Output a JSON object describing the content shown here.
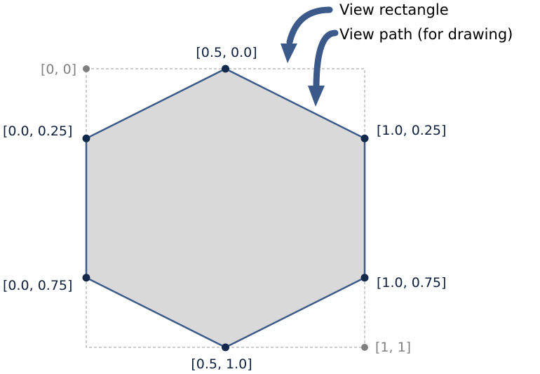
{
  "annotations": {
    "view_rectangle": "View rectangle",
    "view_path": "View path (for drawing)"
  },
  "corner_labels": {
    "top_left": "[0, 0]",
    "bottom_right": "[1, 1]"
  },
  "vertices": [
    {
      "label": "[0.5, 0.0]",
      "x": 0.5,
      "y": 0.0
    },
    {
      "label": "[1.0, 0.25]",
      "x": 1.0,
      "y": 0.25
    },
    {
      "label": "[1.0, 0.75]",
      "x": 1.0,
      "y": 0.75
    },
    {
      "label": "[0.5, 1.0]",
      "x": 0.5,
      "y": 1.0
    },
    {
      "label": "[0.0, 0.75]",
      "x": 0.0,
      "y": 0.75
    },
    {
      "label": "[0.0, 0.25]",
      "x": 0.0,
      "y": 0.25
    }
  ],
  "colors": {
    "hexagon_fill": "#d9d9d9",
    "hexagon_stroke": "#3b5a8a",
    "vertex_dot": "#13294b",
    "corner_dot": "#7f7f7f",
    "view_rect_stroke": "#9a9a9a",
    "arrow": "#3b5a8a"
  }
}
